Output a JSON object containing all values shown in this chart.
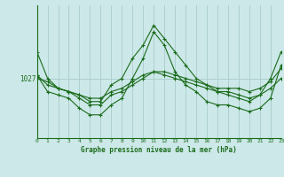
{
  "title": "Graphe pression niveau de la mer (hPa)",
  "background_color": "#cce8e8",
  "line_color": "#1a6b1a",
  "grid_color": "#aacccc",
  "x_ticks": [
    0,
    1,
    2,
    3,
    4,
    5,
    6,
    7,
    8,
    9,
    10,
    11,
    12,
    13,
    14,
    15,
    16,
    17,
    18,
    19,
    20,
    21,
    22,
    23
  ],
  "series": [
    [
      1031,
      1027,
      1025.5,
      1025,
      1024.5,
      1023.5,
      1023.5,
      1026,
      1027,
      1030,
      1032,
      1035,
      1033,
      1031,
      1029,
      1027,
      1026,
      1025,
      1024.5,
      1024,
      1023.5,
      1024.5,
      1027,
      1031
    ],
    [
      1027,
      1026.5,
      1025.5,
      1025,
      1024,
      1023,
      1023,
      1024.5,
      1025,
      1026,
      1027,
      1028,
      1027.5,
      1027,
      1026.5,
      1026,
      1025.5,
      1025,
      1025,
      1024.5,
      1024,
      1024.5,
      1025.5,
      1027
    ],
    [
      1027.5,
      1025,
      1024.5,
      1024,
      1022.5,
      1021.5,
      1021.5,
      1023,
      1024,
      1027,
      1030,
      1034,
      1032,
      1028,
      1026,
      1025,
      1023.5,
      1023,
      1023,
      1022.5,
      1022,
      1022.5,
      1024,
      1029
    ],
    [
      1027.5,
      1026,
      1025.5,
      1025,
      1024.5,
      1024,
      1024,
      1025,
      1025.5,
      1026.5,
      1027.5,
      1028,
      1028,
      1027.5,
      1027,
      1026.5,
      1026,
      1025.5,
      1025.5,
      1025.5,
      1025,
      1025.5,
      1026.5,
      1028.5
    ]
  ],
  "xlim": [
    0,
    23
  ],
  "ylim": [
    1018,
    1038
  ],
  "y_label_val": 1027,
  "figsize": [
    3.2,
    2.0
  ],
  "dpi": 100
}
